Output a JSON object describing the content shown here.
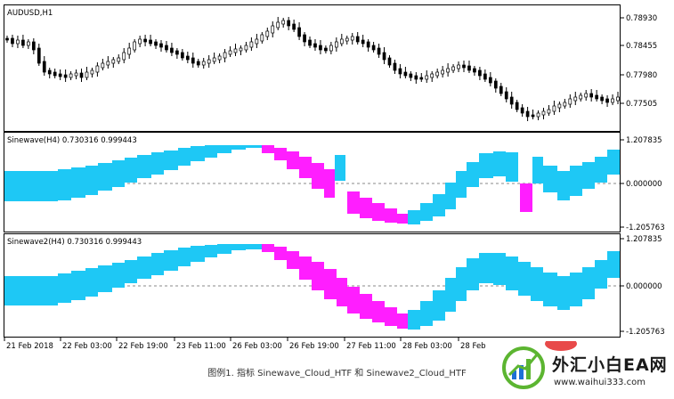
{
  "panels": {
    "main": {
      "title": "AUDUSD,H1",
      "ticks": [
        "0.78930",
        "0.78455",
        "0.77980",
        "0.77505"
      ]
    },
    "ind1": {
      "title": "Sinewave(H4) 0.730316 0.999443",
      "ticks": [
        "1.207835",
        "0.000000",
        "-1.205763"
      ]
    },
    "ind2": {
      "title": "Sinewave2(H4) 0.730316 0.999443",
      "ticks": [
        "1.207835",
        "0.000000",
        "-1.205763"
      ]
    }
  },
  "time_axis": [
    "21 Feb 2018",
    "22 Feb 03:00",
    "22 Feb 19:00",
    "23 Feb 11:00",
    "26 Feb 03:00",
    "26 Feb 19:00",
    "27 Feb 11:00",
    "28 Feb 03:00",
    "28 Feb"
  ],
  "caption": "图例1. 指标 Sinewave_Cloud_HTF 和 Sinewave2_Cloud_HTF",
  "watermark": {
    "name": "外汇小白EA网",
    "url": "www.waihui333.com"
  },
  "colors": {
    "cloud_up": "#1ec8f5",
    "cloud_down": "#ff1eff",
    "candle": "#000000",
    "watermark_green": "#5cb531",
    "watermark_blue": "#1e6fd6"
  }
}
